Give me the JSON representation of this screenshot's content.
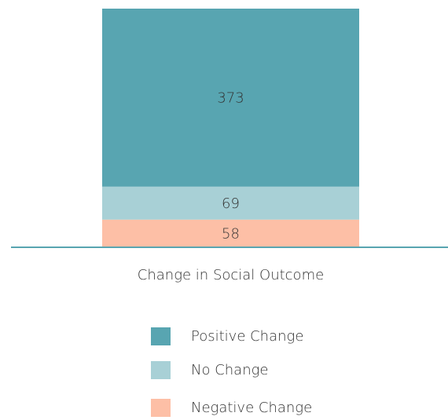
{
  "chart_data": {
    "type": "stacked_bar",
    "categories": [
      "Change in Social Outcome"
    ],
    "series": [
      {
        "name": "Positive Change",
        "color": "#58a5b1",
        "values": [
          373
        ]
      },
      {
        "name": "No Change",
        "color": "#a8d0d6",
        "values": [
          69
        ]
      },
      {
        "name": "Negative Change",
        "color": "#fdbfa6",
        "values": [
          58
        ]
      }
    ],
    "ylim": [
      0,
      500
    ],
    "axis_color": "#58a5b1"
  }
}
